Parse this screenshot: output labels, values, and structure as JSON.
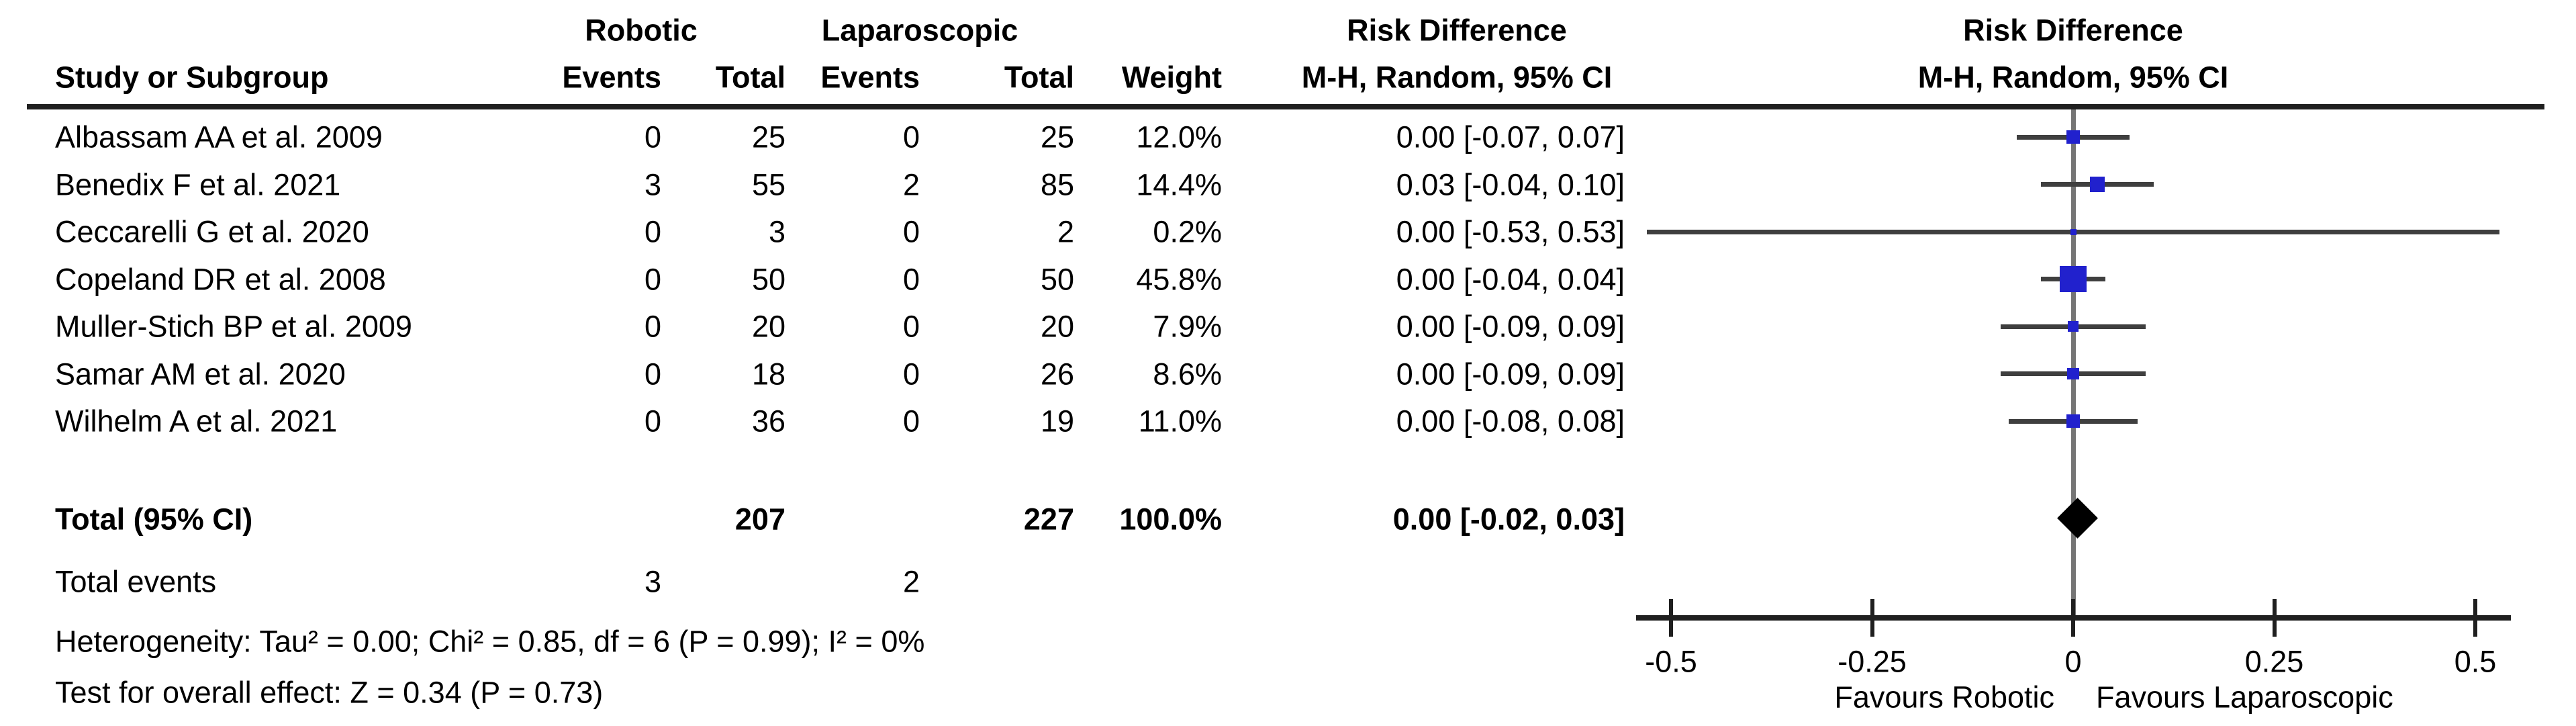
{
  "header": {
    "group_robotic": "Robotic",
    "group_laparoscopic": "Laparoscopic",
    "study_col": "Study or Subgroup",
    "events_col": "Events",
    "total_col": "Total",
    "weight_col": "Weight",
    "effect_col_title": "Risk Difference",
    "effect_col_sub": "M-H, Random, 95% CI",
    "plot_col_title": "Risk Difference",
    "plot_col_sub": "M-H, Random, 95% CI"
  },
  "chart_data": {
    "type": "scatter",
    "subtype": "forest-plot",
    "effect_measure": "Risk Difference",
    "method": "M-H, Random, 95% CI",
    "xlim": [
      -0.5,
      0.5
    ],
    "x_ticks": [
      -0.5,
      -0.25,
      0,
      0.25,
      0.5
    ],
    "x_tick_labels": [
      "-0.5",
      "-0.25",
      "0",
      "0.25",
      "0.5"
    ],
    "favours_left": "Favours Robotic",
    "favours_right": "Favours Laparoscopic",
    "grid": false,
    "studies": [
      {
        "name": "Albassam AA et al. 2009",
        "robotic_events": 0,
        "robotic_total": 25,
        "laparoscopic_events": 0,
        "laparoscopic_total": 25,
        "weight": "12.0%",
        "weight_pct": 12.0,
        "estimate": 0.0,
        "ci_lower": -0.07,
        "ci_upper": 0.07,
        "ci_text": "0.00 [-0.07, 0.07]"
      },
      {
        "name": "Benedix F et al. 2021",
        "robotic_events": 3,
        "robotic_total": 55,
        "laparoscopic_events": 2,
        "laparoscopic_total": 85,
        "weight": "14.4%",
        "weight_pct": 14.4,
        "estimate": 0.03,
        "ci_lower": -0.04,
        "ci_upper": 0.1,
        "ci_text": "0.03 [-0.04, 0.10]"
      },
      {
        "name": "Ceccarelli G et al. 2020",
        "robotic_events": 0,
        "robotic_total": 3,
        "laparoscopic_events": 0,
        "laparoscopic_total": 2,
        "weight": "0.2%",
        "weight_pct": 0.2,
        "estimate": 0.0,
        "ci_lower": -0.53,
        "ci_upper": 0.53,
        "ci_text": "0.00 [-0.53, 0.53]"
      },
      {
        "name": "Copeland DR et al. 2008",
        "robotic_events": 0,
        "robotic_total": 50,
        "laparoscopic_events": 0,
        "laparoscopic_total": 50,
        "weight": "45.8%",
        "weight_pct": 45.8,
        "estimate": 0.0,
        "ci_lower": -0.04,
        "ci_upper": 0.04,
        "ci_text": "0.00 [-0.04, 0.04]"
      },
      {
        "name": "Muller-Stich BP et al. 2009",
        "robotic_events": 0,
        "robotic_total": 20,
        "laparoscopic_events": 0,
        "laparoscopic_total": 20,
        "weight": "7.9%",
        "weight_pct": 7.9,
        "estimate": 0.0,
        "ci_lower": -0.09,
        "ci_upper": 0.09,
        "ci_text": "0.00 [-0.09, 0.09]"
      },
      {
        "name": "Samar AM et al. 2020",
        "robotic_events": 0,
        "robotic_total": 18,
        "laparoscopic_events": 0,
        "laparoscopic_total": 26,
        "weight": "8.6%",
        "weight_pct": 8.6,
        "estimate": 0.0,
        "ci_lower": -0.09,
        "ci_upper": 0.09,
        "ci_text": "0.00 [-0.09, 0.09]"
      },
      {
        "name": "Wilhelm A et al. 2021",
        "robotic_events": 0,
        "robotic_total": 36,
        "laparoscopic_events": 0,
        "laparoscopic_total": 19,
        "weight": "11.0%",
        "weight_pct": 11.0,
        "estimate": 0.0,
        "ci_lower": -0.08,
        "ci_upper": 0.08,
        "ci_text": "0.00 [-0.08, 0.08]"
      }
    ],
    "total": {
      "label": "Total (95% CI)",
      "robotic_total": "207",
      "laparoscopic_total": "227",
      "weight": "100.0%",
      "estimate": 0.005,
      "ci_lower": -0.02,
      "ci_upper": 0.03,
      "ci_text": "0.00 [-0.02, 0.03]"
    },
    "total_events": {
      "label": "Total events",
      "robotic": "3",
      "laparoscopic": "2"
    },
    "heterogeneity": "Heterogeneity: Tau² = 0.00; Chi² = 0.85, df = 6 (P = 0.99); I² = 0%",
    "overall_effect": "Test for overall effect: Z = 0.34 (P = 0.73)"
  },
  "colors": {
    "square": "#2121cd",
    "diamond": "#000000",
    "ci_line": "#3f3f3f",
    "axis": "#1f1f1f",
    "zero_line": "#757575"
  }
}
